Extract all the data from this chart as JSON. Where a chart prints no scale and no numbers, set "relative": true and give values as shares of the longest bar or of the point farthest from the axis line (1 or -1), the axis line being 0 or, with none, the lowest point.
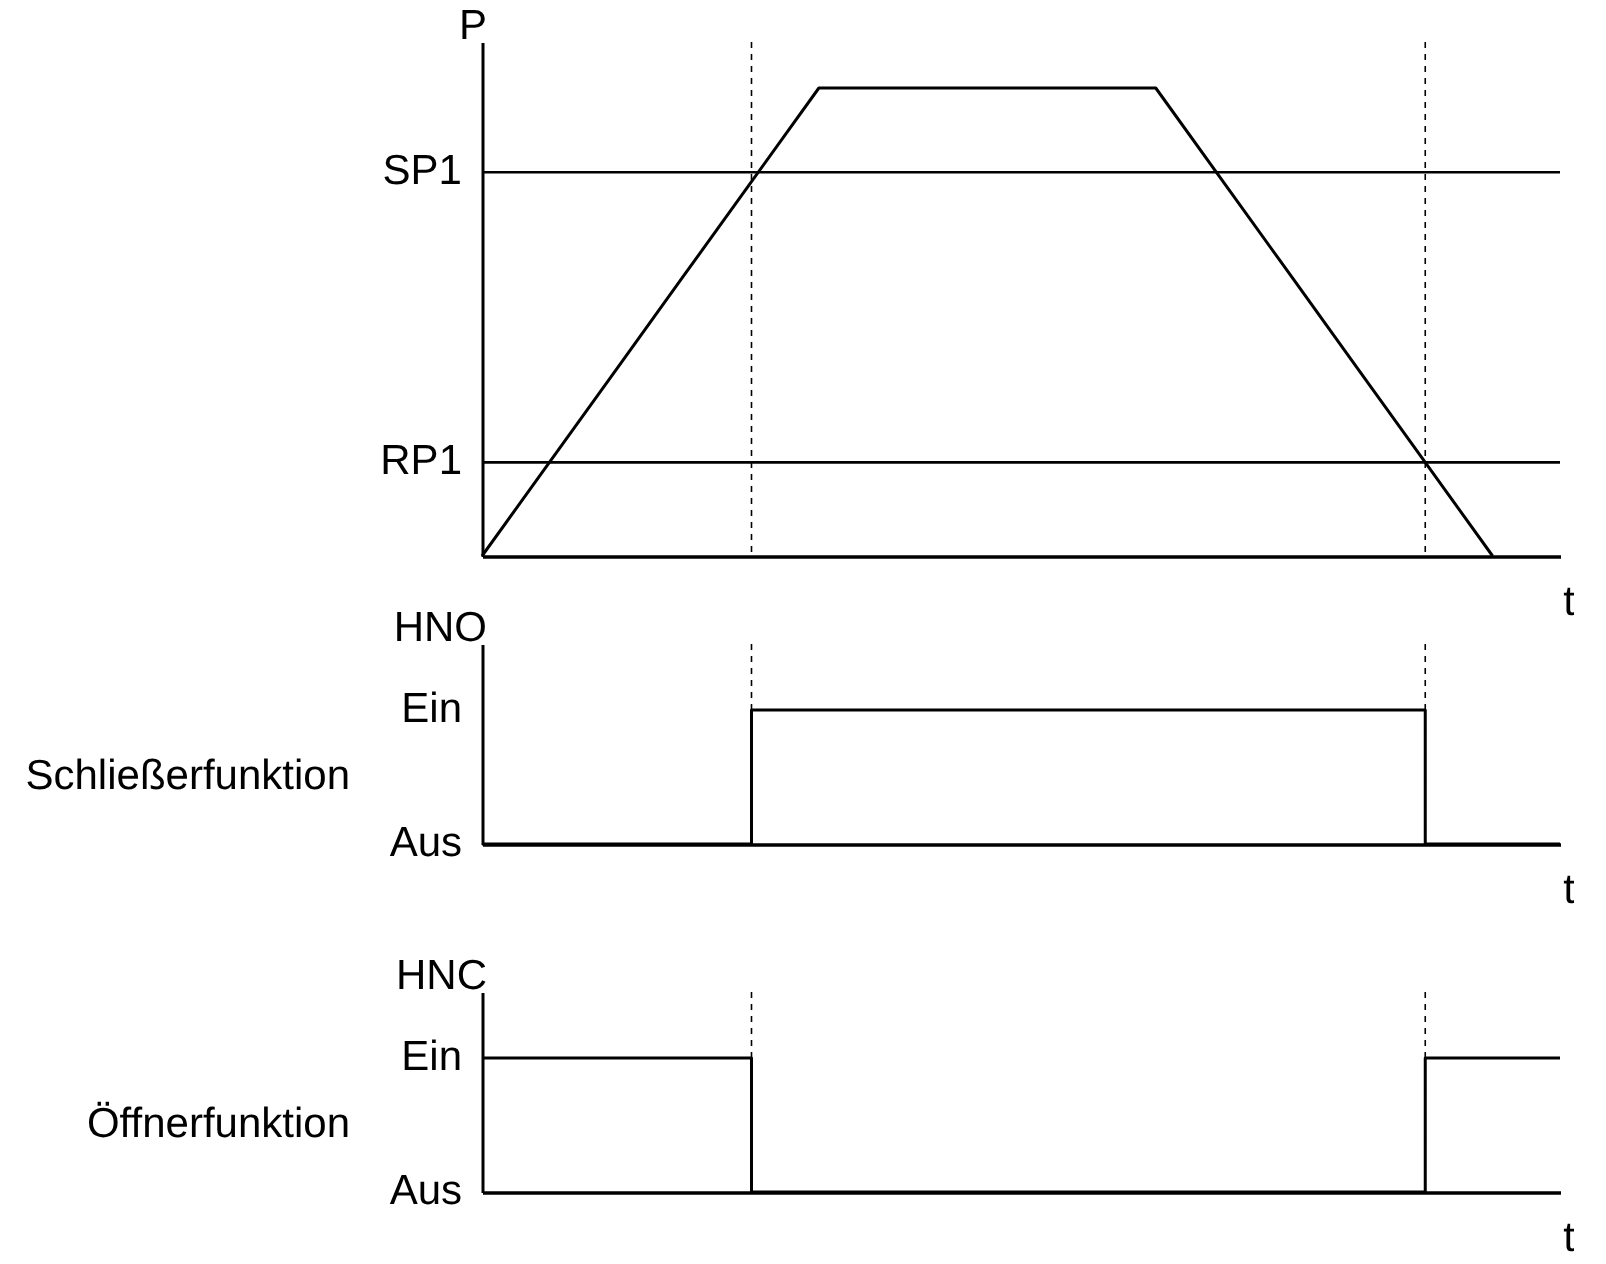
{
  "chart_data": [
    {
      "type": "line",
      "relative": true,
      "categories": [
        null,
        null,
        null,
        null,
        null,
        null,
        null,
        null,
        null,
        null,
        null,
        null,
        null,
        null,
        null,
        null,
        null
      ],
      "values": [
        0,
        0.2,
        0.4,
        0.6,
        0.8,
        1,
        1,
        1,
        1,
        1,
        1,
        0.8,
        0.6,
        0.4,
        0.2,
        0,
        null
      ],
      "color": "#000000",
      "ylabel": "P",
      "xlabel": "t",
      "grid": false,
      "ref_lines": [
        {
          "axis": "y",
          "value": 0.82,
          "label": "SP1"
        },
        {
          "axis": "y",
          "value": 0.2,
          "label": "RP1"
        }
      ]
    },
    {
      "type": "step",
      "relative": true,
      "categories": [
        null,
        null,
        null,
        null,
        null,
        null,
        null,
        null,
        null,
        null,
        null,
        null,
        null,
        null,
        null,
        null,
        null
      ],
      "values": [
        0,
        0,
        0,
        0,
        1,
        1,
        1,
        1,
        1,
        1,
        1,
        1,
        1,
        1,
        0,
        0,
        0
      ],
      "color": "#000000",
      "ylabel": "HNO",
      "xlabel": "t",
      "grid": false,
      "annotations": [
        "Schließerfunktion",
        "Ein",
        "Aus"
      ]
    },
    {
      "type": "step",
      "relative": true,
      "categories": [
        null,
        null,
        null,
        null,
        null,
        null,
        null,
        null,
        null,
        null,
        null,
        null,
        null,
        null,
        null,
        null,
        null
      ],
      "values": [
        1,
        1,
        1,
        1,
        0,
        0,
        0,
        0,
        0,
        0,
        0,
        0,
        0,
        0,
        1,
        1,
        1
      ],
      "color": "#000000",
      "ylabel": "HNC",
      "xlabel": "t",
      "grid": false,
      "annotations": [
        "Öffnerfunktion",
        "Ein",
        "Aus"
      ]
    }
  ]
}
